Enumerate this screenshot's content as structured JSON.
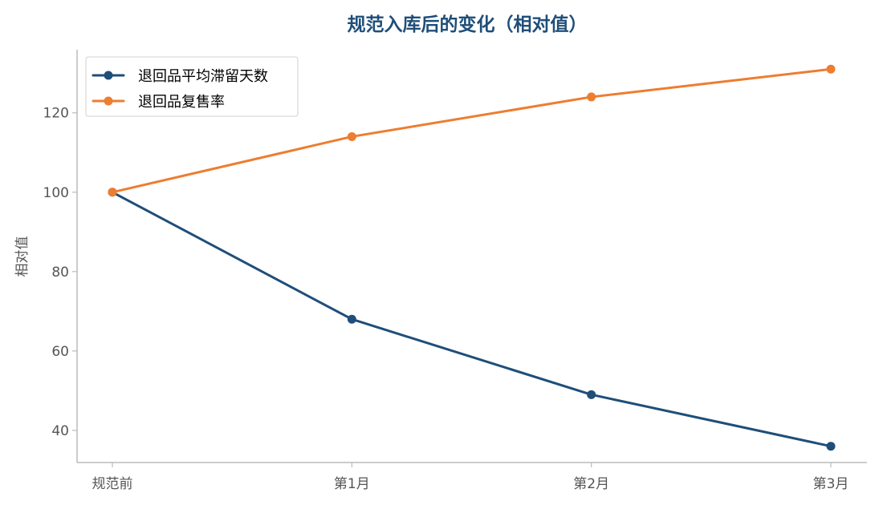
{
  "chart_data": {
    "type": "line",
    "title": "规范入库后的变化（相对值）",
    "xlabel": "",
    "ylabel": "相对值",
    "categories": [
      "规范前",
      "第1月",
      "第2月",
      "第3月"
    ],
    "series": [
      {
        "name": "退回品平均滞留天数",
        "values": [
          100,
          68,
          49,
          36
        ],
        "color": "#1f4e79"
      },
      {
        "name": "退回品复售率",
        "values": [
          100,
          114,
          124,
          131
        ],
        "color": "#ed7d31"
      }
    ],
    "ylim": [
      31.9,
      135.9
    ],
    "yticks": [
      40,
      60,
      80,
      100,
      120
    ],
    "grid": false,
    "legend_position": "top-left"
  },
  "colors": {
    "title": "#1f4e79",
    "axis": "#bbbbbb",
    "tick_text": "#555555"
  }
}
